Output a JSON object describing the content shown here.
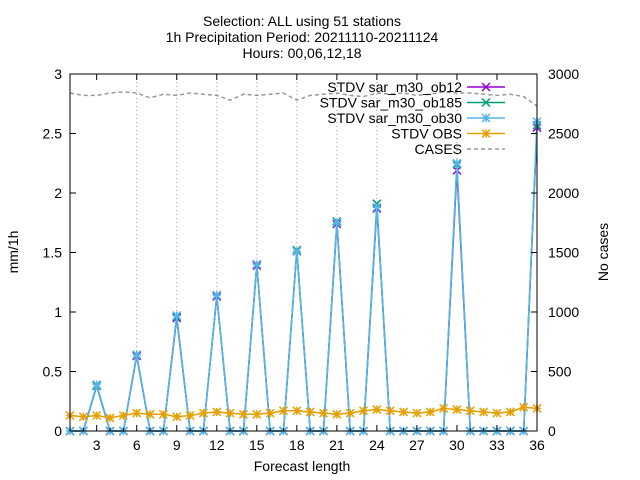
{
  "chart_data": {
    "type": "line",
    "title_lines": [
      "Selection: ALL using    51 stations",
      "1h Precipitation   Period: 20211110-20211124",
      "Hours: 00,06,12,18"
    ],
    "xlabel": "Forecast length",
    "ylabel": "mm/1h",
    "y2label": "No cases",
    "xlim": [
      1,
      36
    ],
    "ylim": [
      0,
      3
    ],
    "y2lim": [
      0,
      3000
    ],
    "xticks": [
      3,
      6,
      9,
      12,
      15,
      18,
      21,
      24,
      27,
      30,
      33,
      36
    ],
    "yticks": [
      "0",
      "0.5",
      "1",
      "1.5",
      "2",
      "2.5",
      "3"
    ],
    "y2ticks": [
      "0",
      "500",
      "1000",
      "1500",
      "2000",
      "2500",
      "3000"
    ],
    "x": [
      1,
      2,
      3,
      4,
      5,
      6,
      7,
      8,
      9,
      10,
      11,
      12,
      13,
      14,
      15,
      16,
      17,
      18,
      19,
      20,
      21,
      22,
      23,
      24,
      25,
      26,
      27,
      28,
      29,
      30,
      31,
      32,
      33,
      34,
      35,
      36
    ],
    "legend_position": "top-right",
    "grid": "dotted vertical lines from points to top",
    "series": [
      {
        "name": "STDV sar_m30_ob12",
        "color": "#9400d3",
        "marker": "cross",
        "axis": "y",
        "values": [
          0,
          0,
          0.38,
          0,
          0,
          0.63,
          0,
          0,
          0.95,
          0,
          0,
          1.13,
          0,
          0,
          1.39,
          0,
          0,
          1.51,
          0,
          0,
          1.74,
          0,
          0,
          1.87,
          0,
          0,
          0,
          0,
          0,
          2.19,
          0,
          0,
          0,
          0,
          0,
          2.55
        ]
      },
      {
        "name": "STDV sar_m30_ob185",
        "color": "#009e73",
        "marker": "cross",
        "axis": "y",
        "values": [
          0,
          0,
          0.38,
          0,
          0,
          0.64,
          0,
          0,
          0.96,
          0,
          0,
          1.14,
          0,
          0,
          1.4,
          0,
          0,
          1.52,
          0,
          0,
          1.76,
          0,
          0,
          1.91,
          0,
          0,
          0,
          0,
          0,
          2.24,
          0,
          0,
          0,
          0,
          0,
          2.57
        ]
      },
      {
        "name": "STDV sar_m30_ob30",
        "color": "#56b4e9",
        "marker": "star",
        "axis": "y",
        "values": [
          0,
          0,
          0.39,
          0,
          0,
          0.64,
          0,
          0,
          0.97,
          0,
          0,
          1.14,
          0,
          0,
          1.4,
          0,
          0,
          1.51,
          0,
          0,
          1.75,
          0,
          0,
          1.88,
          0,
          0,
          0,
          0,
          0,
          2.25,
          0,
          0,
          0,
          0,
          0,
          2.6
        ]
      },
      {
        "name": "STDV OBS",
        "color": "#e69f00",
        "marker": "star",
        "axis": "y",
        "values": [
          0.13,
          0.12,
          0.13,
          0.11,
          0.13,
          0.15,
          0.14,
          0.14,
          0.12,
          0.13,
          0.15,
          0.16,
          0.15,
          0.14,
          0.14,
          0.15,
          0.17,
          0.17,
          0.16,
          0.15,
          0.14,
          0.15,
          0.17,
          0.18,
          0.17,
          0.16,
          0.15,
          0.16,
          0.19,
          0.18,
          0.17,
          0.16,
          0.15,
          0.16,
          0.2,
          0.19
        ]
      },
      {
        "name": "CASES",
        "color": "#999999",
        "marker": "none",
        "dashed": true,
        "axis": "y2",
        "values": [
          2840,
          2820,
          2820,
          2840,
          2850,
          2840,
          2800,
          2830,
          2820,
          2840,
          2830,
          2820,
          2780,
          2830,
          2820,
          2830,
          2840,
          2780,
          2820,
          2830,
          2840,
          2820,
          2810,
          2840,
          2830,
          2840,
          2820,
          2830,
          2850,
          2840,
          2840,
          2830,
          2820,
          2830,
          2810,
          2730
        ]
      }
    ]
  }
}
